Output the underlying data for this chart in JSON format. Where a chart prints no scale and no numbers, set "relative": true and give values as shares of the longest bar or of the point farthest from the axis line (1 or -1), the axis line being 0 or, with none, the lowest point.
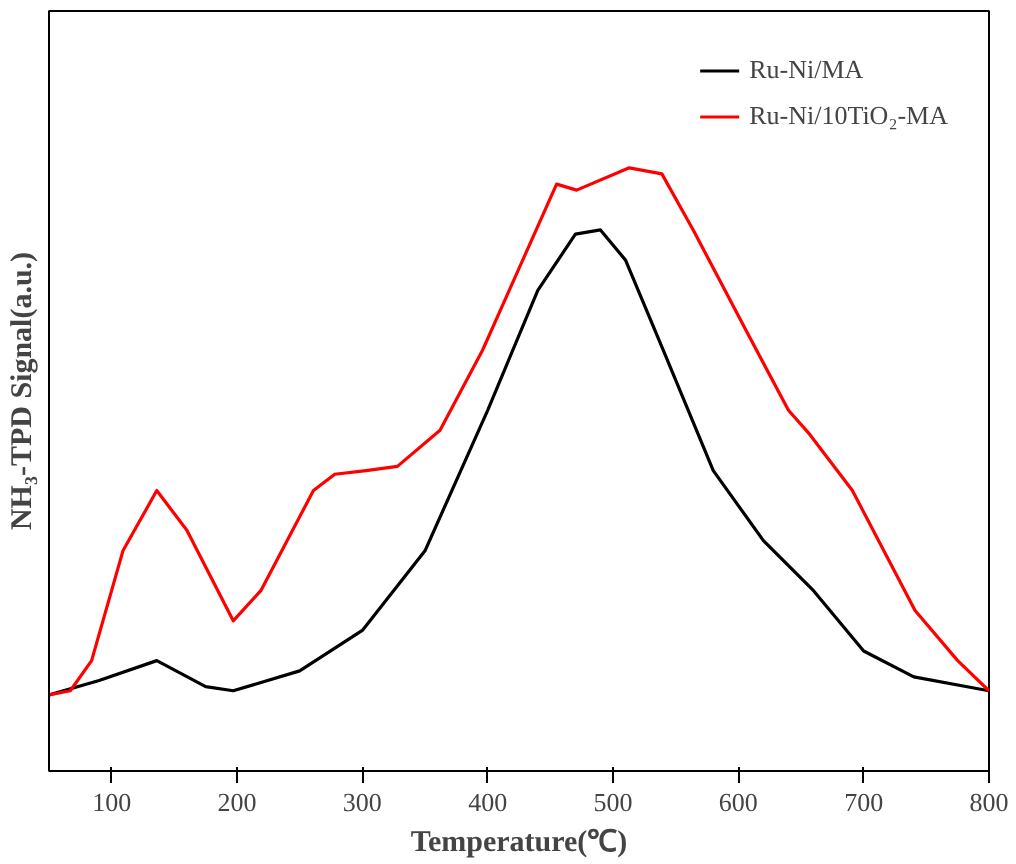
{
  "chart_data": {
    "type": "line",
    "relative": true,
    "xlabel": "Temperature(℃)",
    "ylabel": "NH₃-TPD Signal(a.u.)",
    "xlim": [
      50,
      800
    ],
    "xticks": [
      100,
      200,
      300,
      400,
      500,
      600,
      700,
      800
    ],
    "legend": "top right",
    "grid": false,
    "line_style": "solid",
    "marker": "none",
    "series": [
      {
        "name": "Ru-Ni/MA",
        "color": "#000000",
        "x": [
          50,
          90,
          136,
          175,
          197,
          250,
          300,
          350,
          400,
          440,
          470,
          490,
          510,
          540,
          580,
          620,
          660,
          700,
          740,
          800
        ],
        "values": [
          0.126,
          0.15,
          0.183,
          0.14,
          0.133,
          0.166,
          0.233,
          0.365,
          0.598,
          0.797,
          0.89,
          0.897,
          0.847,
          0.698,
          0.498,
          0.382,
          0.299,
          0.199,
          0.156,
          0.133
        ]
      },
      {
        "name": "Ru-Ni/10TiO₂-MA",
        "color": "#ff0000",
        "x": [
          50,
          67,
          84,
          109,
          136,
          160,
          197,
          219,
          261,
          278,
          303,
          328,
          362,
          396,
          455,
          471,
          513,
          539,
          564,
          606,
          640,
          657,
          691,
          741,
          775,
          800
        ],
        "values": [
          0.126,
          0.133,
          0.183,
          0.365,
          0.465,
          0.399,
          0.249,
          0.299,
          0.465,
          0.492,
          0.498,
          0.505,
          0.565,
          0.698,
          0.973,
          0.963,
          1,
          0.99,
          0.897,
          0.731,
          0.598,
          0.558,
          0.465,
          0.266,
          0.183,
          0.133
        ]
      }
    ]
  }
}
